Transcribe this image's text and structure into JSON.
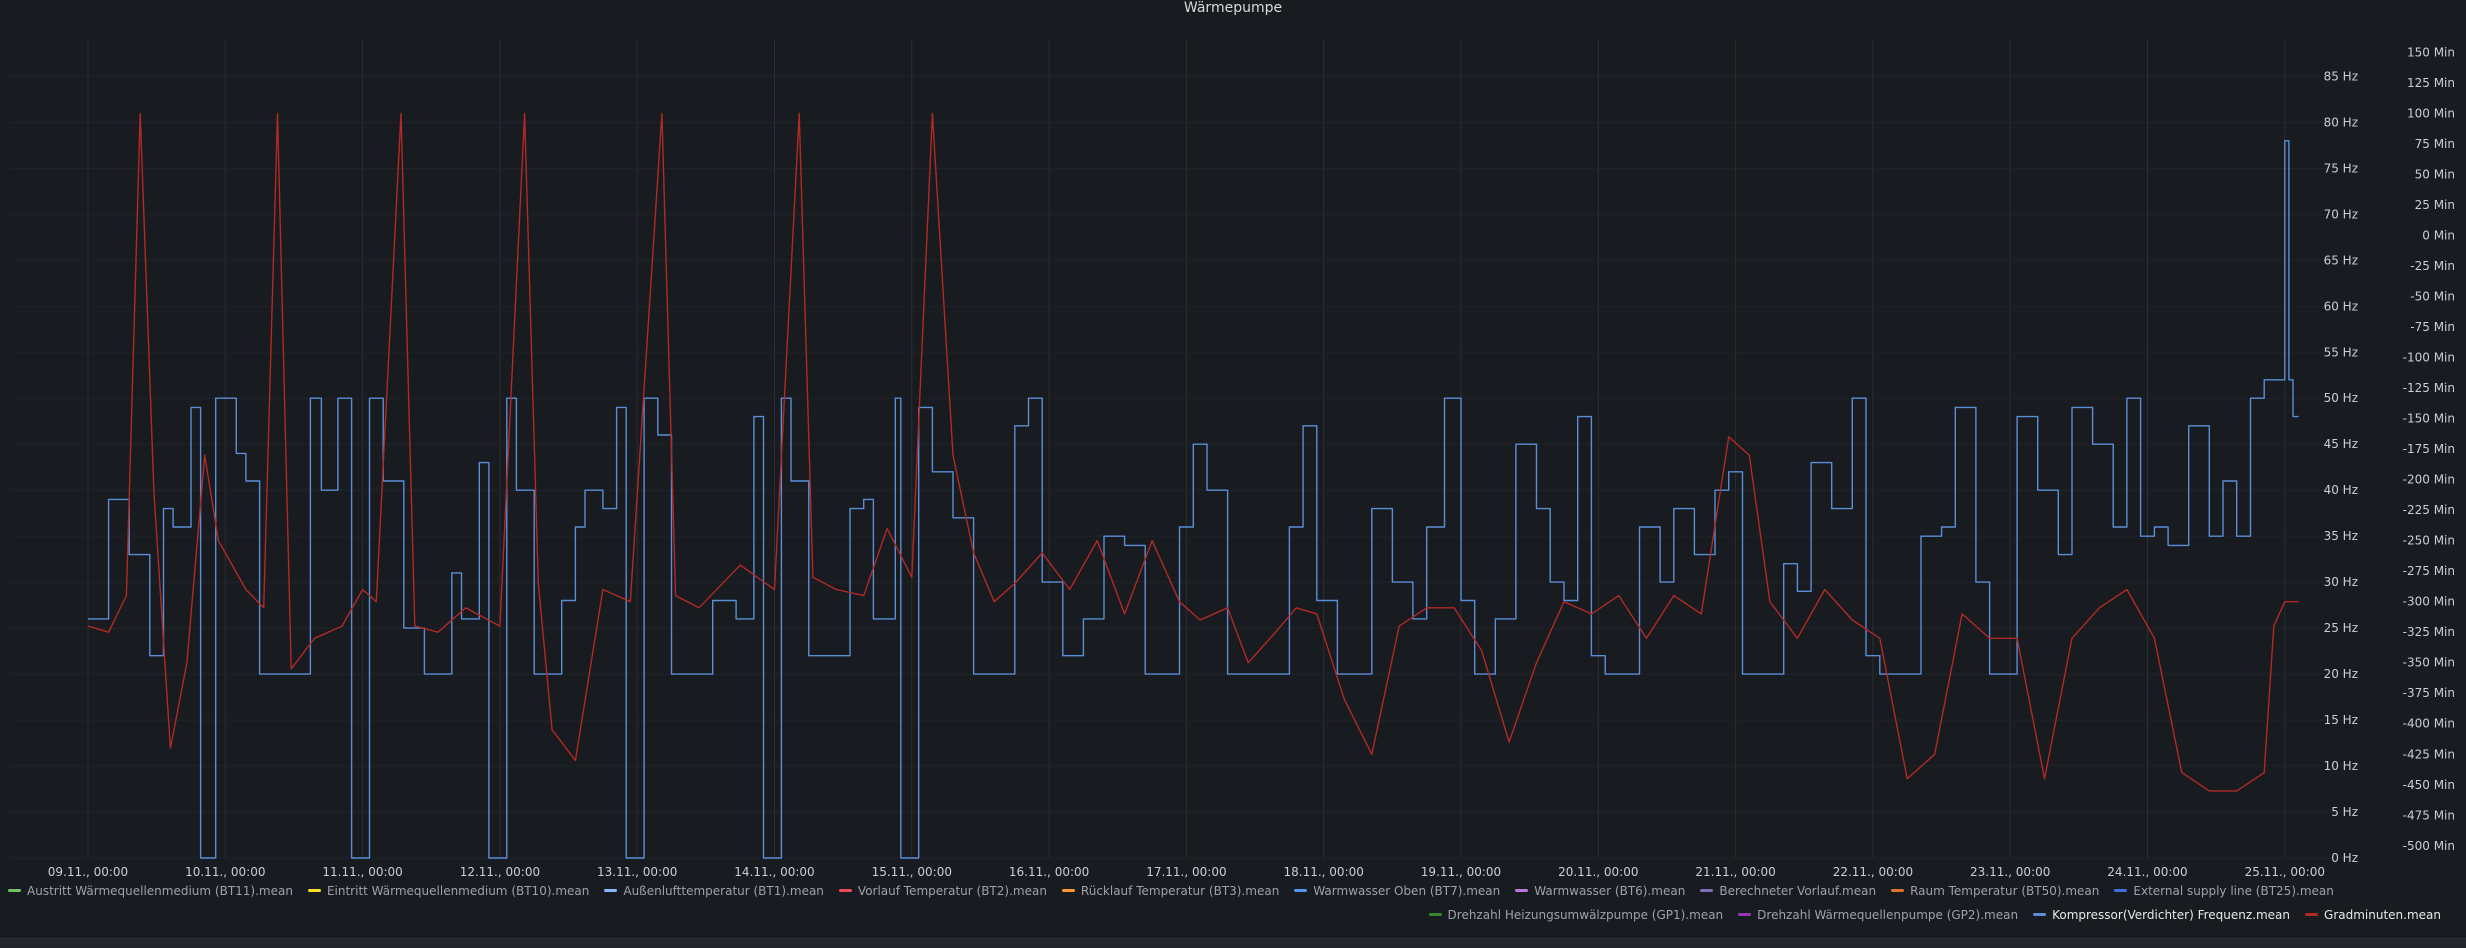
{
  "panel": {
    "title": "Wärmepumpe"
  },
  "chart_data": {
    "type": "line",
    "title": "Wärmepumpe",
    "x": [
      "09.11., 00:00",
      "10.11., 00:00",
      "11.11., 00:00",
      "12.11., 00:00",
      "13.11., 00:00",
      "14.11., 00:00",
      "15.11., 00:00",
      "16.11., 00:00",
      "17.11., 00:00",
      "18.11., 00:00",
      "19.11., 00:00",
      "20.11., 00:00",
      "21.11., 00:00",
      "22.11., 00:00",
      "23.11., 00:00",
      "24.11., 00:00",
      "25.11., 00:00"
    ],
    "y_axis_hz": {
      "ticks": [
        "0 Hz",
        "5 Hz",
        "10 Hz",
        "15 Hz",
        "20 Hz",
        "25 Hz",
        "30 Hz",
        "35 Hz",
        "40 Hz",
        "45 Hz",
        "50 Hz",
        "55 Hz",
        "60 Hz",
        "65 Hz",
        "70 Hz",
        "75 Hz",
        "80 Hz",
        "85 Hz"
      ],
      "range": [
        0,
        87
      ]
    },
    "y_axis_min": {
      "ticks": [
        "150 Min",
        "125 Min",
        "100 Min",
        "75 Min",
        "50 Min",
        "25 Min",
        "0 Min",
        "-25 Min",
        "-50 Min",
        "-75 Min",
        "-100 Min",
        "-125 Min",
        "-150 Min",
        "-175 Min",
        "-200 Min",
        "-225 Min",
        "-250 Min",
        "-275 Min",
        "-300 Min",
        "-325 Min",
        "-350 Min",
        "-375 Min",
        "-400 Min",
        "-425 Min",
        "-450 Min",
        "-475 Min",
        "-500 Min"
      ],
      "range": [
        -510,
        152
      ]
    },
    "grid": true,
    "legend_placement": "bottom",
    "series": [
      {
        "name": "Kompressor(Verdichter) Frequenz.mean",
        "axis": "hz",
        "color": "#5b8ed6",
        "points": [
          [
            0.0,
            26
          ],
          [
            0.15,
            39
          ],
          [
            0.3,
            33
          ],
          [
            0.45,
            22
          ],
          [
            0.55,
            38
          ],
          [
            0.62,
            36
          ],
          [
            0.75,
            49
          ],
          [
            0.82,
            0
          ],
          [
            0.92,
            0
          ],
          [
            0.93,
            50
          ],
          [
            1.02,
            50
          ],
          [
            1.08,
            44
          ],
          [
            1.15,
            41
          ],
          [
            1.25,
            20
          ],
          [
            1.4,
            20
          ],
          [
            1.5,
            20
          ],
          [
            1.62,
            50
          ],
          [
            1.7,
            40
          ],
          [
            1.82,
            50
          ],
          [
            1.92,
            0
          ],
          [
            2.02,
            0
          ],
          [
            2.05,
            50
          ],
          [
            2.15,
            41
          ],
          [
            2.3,
            25
          ],
          [
            2.45,
            20
          ],
          [
            2.55,
            20
          ],
          [
            2.65,
            31
          ],
          [
            2.72,
            26
          ],
          [
            2.85,
            43
          ],
          [
            2.92,
            0
          ],
          [
            3.02,
            0
          ],
          [
            3.05,
            50
          ],
          [
            3.12,
            40
          ],
          [
            3.25,
            20
          ],
          [
            3.35,
            20
          ],
          [
            3.45,
            28
          ],
          [
            3.55,
            36
          ],
          [
            3.62,
            40
          ],
          [
            3.75,
            38
          ],
          [
            3.85,
            49
          ],
          [
            3.92,
            0
          ],
          [
            4.02,
            0
          ],
          [
            4.05,
            50
          ],
          [
            4.15,
            46
          ],
          [
            4.25,
            20
          ],
          [
            4.4,
            20
          ],
          [
            4.55,
            28
          ],
          [
            4.72,
            26
          ],
          [
            4.85,
            48
          ],
          [
            4.92,
            0
          ],
          [
            5.02,
            0
          ],
          [
            5.05,
            50
          ],
          [
            5.12,
            41
          ],
          [
            5.25,
            22
          ],
          [
            5.4,
            22
          ],
          [
            5.55,
            38
          ],
          [
            5.65,
            39
          ],
          [
            5.72,
            26
          ],
          [
            5.88,
            50
          ],
          [
            5.92,
            0
          ],
          [
            6.02,
            0
          ],
          [
            6.05,
            49
          ],
          [
            6.15,
            42
          ],
          [
            6.3,
            37
          ],
          [
            6.45,
            20
          ],
          [
            6.6,
            20
          ],
          [
            6.75,
            47
          ],
          [
            6.85,
            50
          ],
          [
            6.95,
            30
          ],
          [
            7.1,
            22
          ],
          [
            7.25,
            26
          ],
          [
            7.4,
            35
          ],
          [
            7.55,
            34
          ],
          [
            7.7,
            20
          ],
          [
            7.85,
            20
          ],
          [
            7.95,
            36
          ],
          [
            8.05,
            45
          ],
          [
            8.15,
            40
          ],
          [
            8.3,
            20
          ],
          [
            8.45,
            20
          ],
          [
            8.6,
            20
          ],
          [
            8.75,
            36
          ],
          [
            8.85,
            47
          ],
          [
            8.95,
            28
          ],
          [
            9.1,
            20
          ],
          [
            9.25,
            20
          ],
          [
            9.35,
            38
          ],
          [
            9.5,
            30
          ],
          [
            9.65,
            26
          ],
          [
            9.75,
            36
          ],
          [
            9.88,
            50
          ],
          [
            10.0,
            28
          ],
          [
            10.1,
            20
          ],
          [
            10.25,
            26
          ],
          [
            10.4,
            45
          ],
          [
            10.55,
            38
          ],
          [
            10.65,
            30
          ],
          [
            10.75,
            28
          ],
          [
            10.85,
            48
          ],
          [
            10.95,
            22
          ],
          [
            11.05,
            20
          ],
          [
            11.2,
            20
          ],
          [
            11.3,
            36
          ],
          [
            11.45,
            30
          ],
          [
            11.55,
            38
          ],
          [
            11.7,
            33
          ],
          [
            11.85,
            40
          ],
          [
            11.95,
            42
          ],
          [
            12.05,
            20
          ],
          [
            12.2,
            20
          ],
          [
            12.35,
            32
          ],
          [
            12.45,
            29
          ],
          [
            12.55,
            43
          ],
          [
            12.7,
            38
          ],
          [
            12.85,
            50
          ],
          [
            12.95,
            22
          ],
          [
            13.05,
            20
          ],
          [
            13.25,
            20
          ],
          [
            13.35,
            35
          ],
          [
            13.5,
            36
          ],
          [
            13.6,
            49
          ],
          [
            13.75,
            30
          ],
          [
            13.85,
            20
          ],
          [
            14.0,
            20
          ],
          [
            14.05,
            48
          ],
          [
            14.2,
            40
          ],
          [
            14.35,
            33
          ],
          [
            14.45,
            49
          ],
          [
            14.6,
            45
          ],
          [
            14.75,
            36
          ],
          [
            14.85,
            50
          ],
          [
            14.95,
            35
          ],
          [
            15.05,
            36
          ],
          [
            15.15,
            34
          ],
          [
            15.3,
            47
          ],
          [
            15.45,
            35
          ],
          [
            15.55,
            41
          ],
          [
            15.65,
            35
          ],
          [
            15.75,
            50
          ],
          [
            15.85,
            52
          ],
          [
            15.95,
            52
          ],
          [
            16.0,
            78
          ],
          [
            16.03,
            52
          ],
          [
            16.06,
            48
          ],
          [
            16.1,
            48
          ]
        ]
      },
      {
        "name": "Gradminuten.mean",
        "axis": "min",
        "color": "#b02a26",
        "points": [
          [
            0.0,
            -320
          ],
          [
            0.15,
            -325
          ],
          [
            0.28,
            -295
          ],
          [
            0.38,
            100
          ],
          [
            0.48,
            -210
          ],
          [
            0.6,
            -420
          ],
          [
            0.72,
            -350
          ],
          [
            0.85,
            -180
          ],
          [
            0.95,
            -250
          ],
          [
            1.05,
            -270
          ],
          [
            1.15,
            -290
          ],
          [
            1.28,
            -305
          ],
          [
            1.38,
            100
          ],
          [
            1.48,
            -355
          ],
          [
            1.65,
            -330
          ],
          [
            1.85,
            -320
          ],
          [
            2.0,
            -290
          ],
          [
            2.1,
            -300
          ],
          [
            2.28,
            100
          ],
          [
            2.38,
            -320
          ],
          [
            2.55,
            -325
          ],
          [
            2.75,
            -305
          ],
          [
            3.0,
            -320
          ],
          [
            3.18,
            100
          ],
          [
            3.28,
            -285
          ],
          [
            3.38,
            -405
          ],
          [
            3.55,
            -430
          ],
          [
            3.75,
            -290
          ],
          [
            3.95,
            -300
          ],
          [
            4.18,
            100
          ],
          [
            4.28,
            -295
          ],
          [
            4.45,
            -305
          ],
          [
            4.75,
            -270
          ],
          [
            5.0,
            -290
          ],
          [
            5.18,
            100
          ],
          [
            5.28,
            -280
          ],
          [
            5.45,
            -290
          ],
          [
            5.65,
            -295
          ],
          [
            5.82,
            -240
          ],
          [
            6.0,
            -280
          ],
          [
            6.15,
            100
          ],
          [
            6.3,
            -180
          ],
          [
            6.45,
            -260
          ],
          [
            6.6,
            -300
          ],
          [
            6.75,
            -285
          ],
          [
            6.95,
            -260
          ],
          [
            7.15,
            -290
          ],
          [
            7.35,
            -250
          ],
          [
            7.55,
            -310
          ],
          [
            7.75,
            -250
          ],
          [
            7.95,
            -300
          ],
          [
            8.1,
            -315
          ],
          [
            8.3,
            -305
          ],
          [
            8.45,
            -350
          ],
          [
            8.65,
            -325
          ],
          [
            8.8,
            -305
          ],
          [
            8.95,
            -310
          ],
          [
            9.15,
            -380
          ],
          [
            9.35,
            -425
          ],
          [
            9.55,
            -320
          ],
          [
            9.75,
            -305
          ],
          [
            9.95,
            -305
          ],
          [
            10.15,
            -340
          ],
          [
            10.35,
            -415
          ],
          [
            10.55,
            -350
          ],
          [
            10.75,
            -300
          ],
          [
            10.95,
            -310
          ],
          [
            11.15,
            -295
          ],
          [
            11.35,
            -330
          ],
          [
            11.55,
            -295
          ],
          [
            11.75,
            -310
          ],
          [
            11.95,
            -165
          ],
          [
            12.1,
            -180
          ],
          [
            12.25,
            -300
          ],
          [
            12.45,
            -330
          ],
          [
            12.65,
            -290
          ],
          [
            12.85,
            -315
          ],
          [
            13.05,
            -330
          ],
          [
            13.25,
            -445
          ],
          [
            13.45,
            -425
          ],
          [
            13.65,
            -310
          ],
          [
            13.85,
            -330
          ],
          [
            14.05,
            -330
          ],
          [
            14.25,
            -445
          ],
          [
            14.45,
            -330
          ],
          [
            14.65,
            -305
          ],
          [
            14.85,
            -290
          ],
          [
            15.05,
            -330
          ],
          [
            15.25,
            -440
          ],
          [
            15.45,
            -455
          ],
          [
            15.65,
            -455
          ],
          [
            15.85,
            -440
          ],
          [
            15.92,
            -320
          ],
          [
            16.0,
            -300
          ],
          [
            16.1,
            -300
          ]
        ]
      }
    ]
  },
  "legend": {
    "row1": [
      {
        "label": "Austritt Wärmequellenmedium (BT11).mean",
        "color": "#73bf69"
      },
      {
        "label": "Eintritt Wärmequellenmedium (BT10).mean",
        "color": "#fade2a"
      },
      {
        "label": "Außenlufttemperatur (BT1).mean",
        "color": "#8ab8ff"
      },
      {
        "label": "Vorlauf Temperatur (BT2).mean",
        "color": "#f2495c"
      },
      {
        "label": "Rücklauf Temperatur (BT3).mean",
        "color": "#ff9830"
      },
      {
        "label": "Warmwasser Oben (BT7).mean",
        "color": "#5794f2"
      },
      {
        "label": "Warmwasser (BT6).mean",
        "color": "#b877d9"
      },
      {
        "label": "Berechneter Vorlauf.mean",
        "color": "#806eb7"
      },
      {
        "label": "Raum Temperatur (BT50).mean",
        "color": "#e0752d"
      },
      {
        "label": "External supply line (BT25).mean",
        "color": "#3d71d9"
      }
    ],
    "row2": [
      {
        "label": "Drehzahl Heizungsumwälzpumpe (GP1).mean",
        "color": "#37872d"
      },
      {
        "label": "Drehzahl Wärmequellenpumpe (GP2).mean",
        "color": "#8f3bb8"
      },
      {
        "label": "Kompressor(Verdichter) Frequenz.mean",
        "color": "#5b8ed6"
      },
      {
        "label": "Gradminuten.mean",
        "color": "#b02a26"
      }
    ]
  }
}
